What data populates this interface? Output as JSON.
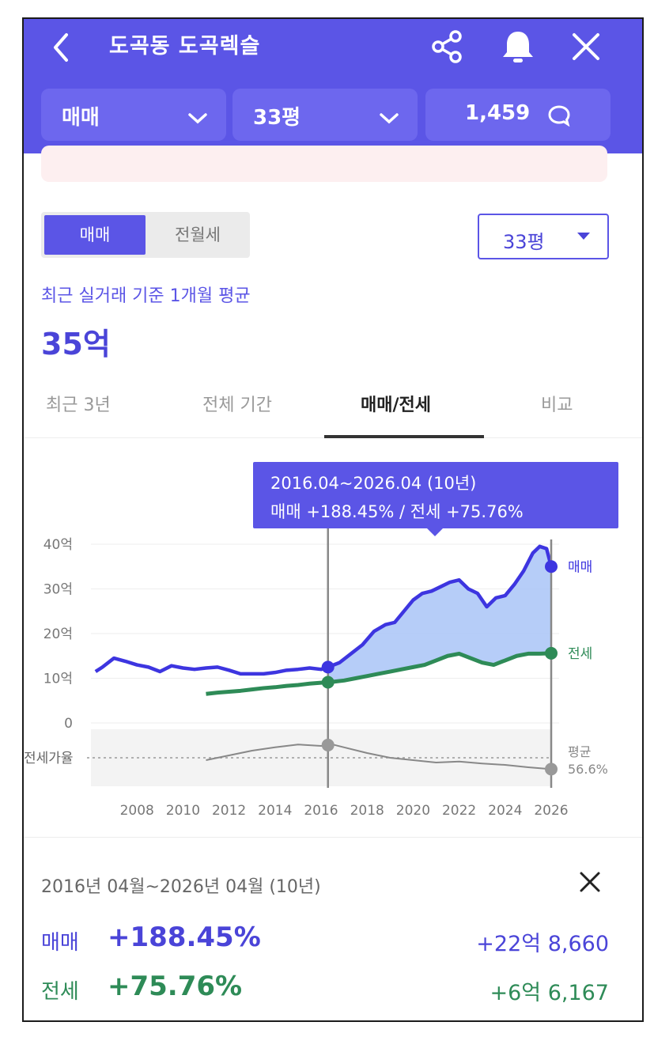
{
  "header": {
    "title": "도곡동 도곡렉슬",
    "dropdowns": [
      "매매",
      "33평",
      "1,459"
    ]
  },
  "segment": {
    "active": "매매",
    "inactive": "전월세"
  },
  "size_select": "33평",
  "summary": {
    "caption": "최근 실거래 기준 1개월 평균",
    "value": "35억"
  },
  "tabs": [
    "최근 3년",
    "전체 기간",
    "매매/전세",
    "비교"
  ],
  "active_tab": "매매/전세",
  "tooltip": {
    "line1": "2016.04~2026.04 (10년)",
    "line2": "매매 +188.45%  /  전세 +75.76%"
  },
  "chart_data": {
    "type": "line",
    "x_ticks": [
      "2008",
      "2010",
      "2012",
      "2014",
      "2016",
      "2018",
      "2020",
      "2022",
      "2024",
      "2026"
    ],
    "y_ticks": [
      "0",
      "10억",
      "20억",
      "30억",
      "40억"
    ],
    "ylim": [
      0,
      40
    ],
    "ratio_label": "전세가율",
    "ratio_avg_label": "평균",
    "ratio_avg_value": "56.6%",
    "colors": {
      "sale": "#3d35e0",
      "rent": "#2e8b57",
      "ratio": "#888888",
      "fill": "#a9c4f7"
    },
    "series": [
      {
        "name": "매매",
        "x": [
          2006.2,
          2006.5,
          2007.0,
          2007.5,
          2008.0,
          2008.5,
          2009.0,
          2009.5,
          2010.0,
          2010.5,
          2011.0,
          2011.5,
          2012.0,
          2012.5,
          2013.0,
          2013.5,
          2014.0,
          2014.5,
          2015.0,
          2015.5,
          2016.0,
          2016.3,
          2016.8,
          2017.3,
          2017.8,
          2018.3,
          2018.8,
          2019.2,
          2019.6,
          2020.0,
          2020.4,
          2020.8,
          2021.2,
          2021.6,
          2022.0,
          2022.4,
          2022.8,
          2023.2,
          2023.6,
          2024.0,
          2024.4,
          2024.8,
          2025.2,
          2025.5,
          2025.8,
          2026.0
        ],
        "values": [
          11.5,
          12.5,
          14.5,
          13.8,
          13.0,
          12.5,
          11.5,
          12.8,
          12.3,
          12.0,
          12.3,
          12.5,
          11.8,
          11.0,
          11.0,
          11.0,
          11.3,
          11.8,
          12.0,
          12.3,
          12.0,
          12.5,
          13.5,
          15.5,
          17.5,
          20.5,
          22.0,
          22.5,
          25.0,
          27.5,
          29.0,
          29.5,
          30.5,
          31.5,
          32.0,
          30.0,
          29.0,
          26.0,
          28.0,
          28.5,
          31.0,
          34.0,
          38.0,
          39.5,
          39.0,
          35.0
        ]
      },
      {
        "name": "전세",
        "x": [
          2011.0,
          2011.5,
          2012.0,
          2012.5,
          2013.0,
          2013.5,
          2014.0,
          2014.5,
          2015.0,
          2015.5,
          2016.0,
          2016.5,
          2017.0,
          2017.5,
          2018.0,
          2018.5,
          2019.0,
          2019.5,
          2020.0,
          2020.5,
          2021.0,
          2021.5,
          2022.0,
          2022.5,
          2023.0,
          2023.5,
          2024.0,
          2024.5,
          2025.0,
          2025.5,
          2026.0
        ],
        "values": [
          6.5,
          6.8,
          7.0,
          7.2,
          7.5,
          7.8,
          8.0,
          8.3,
          8.5,
          8.8,
          9.0,
          9.2,
          9.5,
          10.0,
          10.5,
          11.0,
          11.5,
          12.0,
          12.5,
          13.0,
          14.0,
          15.0,
          15.5,
          14.5,
          13.5,
          13.0,
          14.0,
          15.0,
          15.5,
          15.5,
          15.6
        ]
      },
      {
        "name": "전세가율",
        "x": [
          2011.0,
          2012.0,
          2013.0,
          2014.0,
          2015.0,
          2016.0,
          2016.5,
          2017.0,
          2018.0,
          2019.0,
          2020.0,
          2021.0,
          2022.0,
          2023.0,
          2024.0,
          2025.0,
          2026.0
        ],
        "values": [
          0.45,
          0.55,
          0.65,
          0.72,
          0.78,
          0.75,
          0.78,
          0.72,
          0.6,
          0.5,
          0.45,
          0.4,
          0.42,
          0.38,
          0.35,
          0.3,
          0.26
        ]
      }
    ]
  },
  "panel": {
    "period": "2016년 04월~2026년 04월 (10년)",
    "rows": [
      {
        "label": "매매",
        "pct": "+188.45%",
        "amount": "+22억 8,660"
      },
      {
        "label": "전세",
        "pct": "+75.76%",
        "amount": "+6억 6,167"
      }
    ]
  }
}
